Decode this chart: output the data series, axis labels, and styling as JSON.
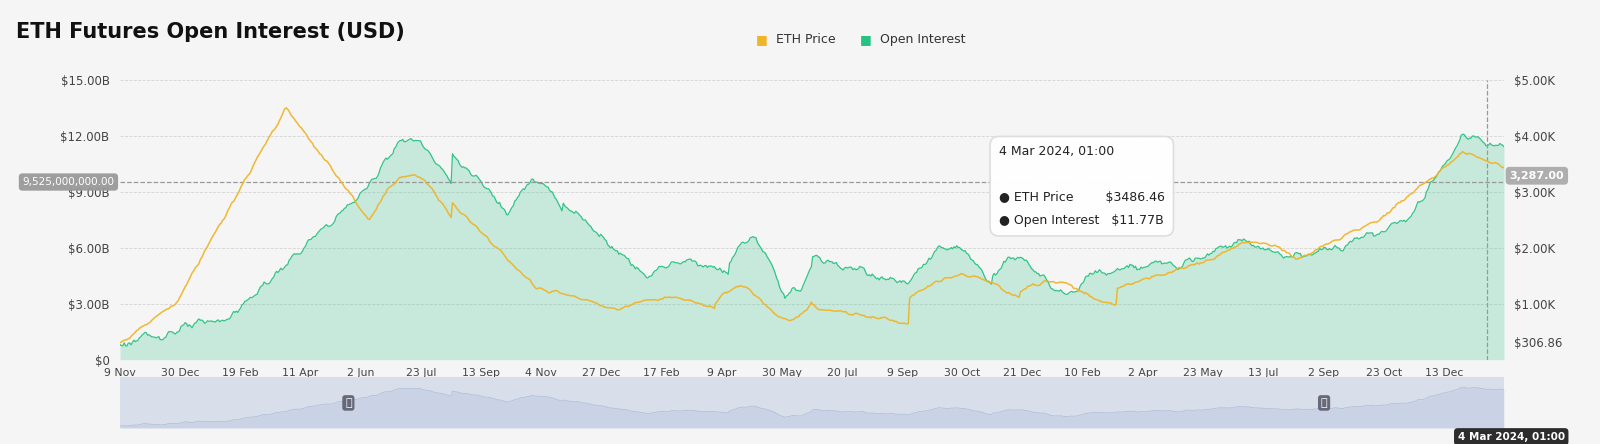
{
  "title": "ETH Futures Open Interest (USD)",
  "background_color": "#f5f5f5",
  "plot_bg_color": "#f5f5f5",
  "eth_price_color": "#f0b429",
  "oi_line_color": "#26c281",
  "oi_fill_color": "#26c281",
  "left_ylim": [
    0,
    15000000000
  ],
  "right_ylim": [
    0,
    5000
  ],
  "left_yticks": [
    0,
    3000000000,
    6000000000,
    9000000000,
    12000000000,
    15000000000
  ],
  "left_yticklabels": [
    "$0",
    "$3.00B",
    "$6.00B",
    "$9.00B",
    "$12.00B",
    "$15.00B"
  ],
  "right_yticks": [
    306.86,
    1000,
    2000,
    3000,
    4000,
    5000
  ],
  "right_yticklabels": [
    "$306.86",
    "$1.00K",
    "$2.00K",
    "$3.00K",
    "$4.00K",
    "$5.00K"
  ],
  "crosshair_oi": 9525000000,
  "crosshair_oi_label": "9,525,000,000.00",
  "crosshair_price": 3287.0,
  "crosshair_price_label": "3,287.00",
  "tooltip_date": "4 Mar 2024, 01:00",
  "tooltip_eth_price": "$3486.46",
  "tooltip_oi": "$11.77B",
  "legend_eth": "ETH Price",
  "legend_oi": "Open Interest",
  "xtick_labels": [
    "9 Nov",
    "30 Dec",
    "19 Feb",
    "11 Apr",
    "2 Jun",
    "23 Jul",
    "13 Sep",
    "4 Nov",
    "27 Dec",
    "17 Feb",
    "9 Apr",
    "30 May",
    "20 Jul",
    "9 Sep",
    "30 Oct",
    "21 Dec",
    "10 Feb",
    "2 Apr",
    "23 May",
    "13 Jul",
    "2 Sep",
    "23 Oct",
    "13 Dec"
  ]
}
